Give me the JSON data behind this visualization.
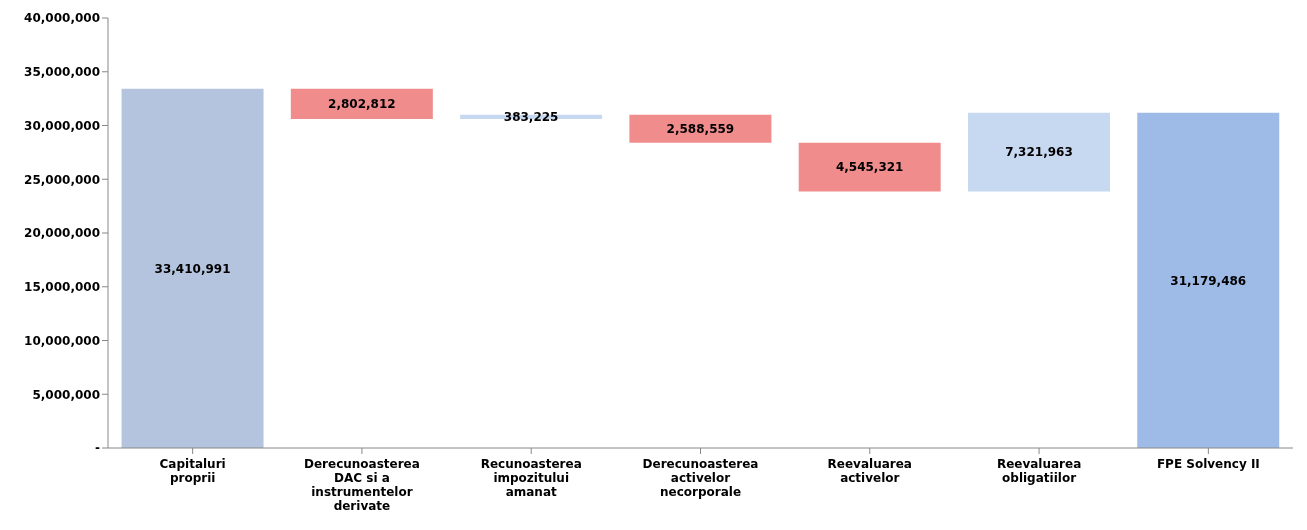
{
  "chart_data": {
    "type": "bar",
    "categories": [
      "Capitaluri proprii",
      "Derecunoasterea DAC si a instrumentelor derivate",
      "Recunoasterea impozitului amanat",
      "Derecunoasterea activelor necorporale",
      "Reevaluarea activelor",
      "Reevaluarea obligatiilor",
      "FPE Solvency II"
    ],
    "values": [
      33410991,
      2802812,
      383225,
      2588559,
      4545321,
      7321963,
      31179486
    ],
    "base": [
      0,
      30608179,
      30608179,
      28402845,
      23857524,
      23857524,
      0
    ],
    "colors": [
      "#b4c4de",
      "#f08c8c",
      "#c6d9f1",
      "#f08c8c",
      "#f08c8c",
      "#c6d9f1",
      "#9dbbe6"
    ],
    "ylim": [
      0,
      40000000
    ],
    "yticks": [
      {
        "value": 0,
        "label": "-"
      },
      {
        "value": 5000000,
        "label": "5,000,000"
      },
      {
        "value": 10000000,
        "label": "10,000,000"
      },
      {
        "value": 15000000,
        "label": "15,000,000"
      },
      {
        "value": 20000000,
        "label": "20,000,000"
      },
      {
        "value": 25000000,
        "label": "25,000,000"
      },
      {
        "value": 30000000,
        "label": "30,000,000"
      },
      {
        "value": 35000000,
        "label": "35,000,000"
      },
      {
        "value": 40000000,
        "label": "40,000,000"
      }
    ],
    "value_labels": [
      "33,410,991",
      "2,802,812",
      "383,225",
      "2,588,559",
      "4,545,321",
      "7,321,963",
      "31,179,486"
    ],
    "grid": false,
    "legend": false
  }
}
